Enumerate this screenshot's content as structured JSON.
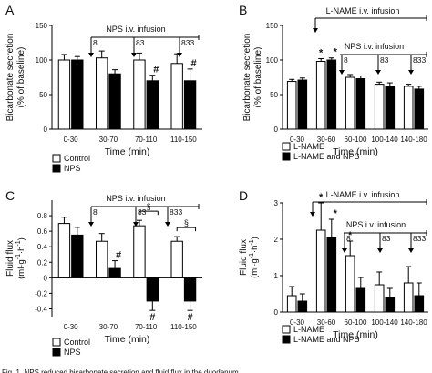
{
  "chart_data": [
    {
      "panel": "A",
      "type": "bar",
      "ylabel": "Bicarbonate secretion (% of baseline)",
      "xlabel": "Time (min)",
      "categories": [
        "0-30",
        "30-70",
        "70-110",
        "110-150"
      ],
      "ylim": [
        0,
        150
      ],
      "yticks": [
        0,
        50,
        100,
        150
      ],
      "series": [
        {
          "name": "Control",
          "values": [
            100,
            103,
            100,
            95
          ],
          "err": [
            8,
            10,
            10,
            14
          ],
          "color": "#ffffff"
        },
        {
          "name": "NPS",
          "values": [
            100,
            80,
            70,
            70
          ],
          "err": [
            5,
            6,
            8,
            17
          ],
          "color": "#000000"
        }
      ],
      "marks": [
        {
          "series": "NPS",
          "category": "70-110",
          "text": "#"
        },
        {
          "series": "NPS",
          "category": "110-150",
          "text": "#"
        }
      ],
      "infusion": {
        "label": "NPS i.v. infusion",
        "doses": [
          "8",
          "83",
          "833"
        ]
      },
      "legend": "bottom-left"
    },
    {
      "panel": "B",
      "type": "bar",
      "ylabel": "Bicarbonate secretion (% of baseline)",
      "xlabel": "Time (min)",
      "categories": [
        "0-30",
        "30-60",
        "60-100",
        "100-140",
        "140-180"
      ],
      "ylim": [
        0,
        150
      ],
      "yticks": [
        0,
        50,
        100,
        150
      ],
      "series": [
        {
          "name": "L-NAME",
          "values": [
            69,
            98,
            75,
            65,
            62
          ],
          "err": [
            3,
            4,
            4,
            3,
            3
          ],
          "color": "#ffffff"
        },
        {
          "name": "L-NAME and NPS",
          "values": [
            71,
            100,
            73,
            62,
            58
          ],
          "err": [
            3,
            3,
            4,
            5,
            4
          ],
          "color": "#000000"
        }
      ],
      "marks": [
        {
          "series": "L-NAME",
          "category": "30-60",
          "text": "*"
        },
        {
          "series": "L-NAME and NPS",
          "category": "30-60",
          "text": "*"
        }
      ],
      "infusion": {
        "label": "NPS i.v. infusion",
        "doses": [
          "8",
          "83",
          "833"
        ]
      },
      "top_infusion": {
        "label": "L-NAME i.v. infusion"
      },
      "legend": "bottom-left"
    },
    {
      "panel": "C",
      "type": "bar",
      "ylabel": "Fluid flux (ml·g-1·h-1)",
      "xlabel": "Time (min)",
      "categories": [
        "0-30",
        "30-70",
        "70-110",
        "110-150"
      ],
      "ylim": [
        -0.5,
        1.0
      ],
      "yticks": [
        -0.4,
        -0.2,
        0,
        0.2,
        0.4,
        0.6,
        0.8
      ],
      "ytick_labels": [
        "-0.4",
        "-0.2",
        "0",
        "0.2",
        "0.4",
        "0.6",
        "0.8"
      ],
      "series": [
        {
          "name": "Control",
          "values": [
            0.7,
            0.47,
            0.67,
            0.47
          ],
          "err": [
            0.08,
            0.1,
            0.07,
            0.06
          ],
          "color": "#ffffff"
        },
        {
          "name": "NPS",
          "values": [
            0.55,
            0.12,
            -0.3,
            -0.3
          ],
          "err": [
            0.1,
            0.1,
            0.12,
            0.12
          ],
          "color": "#000000"
        }
      ],
      "marks": [
        {
          "series": "NPS",
          "category": "30-70",
          "text": "#"
        },
        {
          "series": "NPS",
          "category": "70-110",
          "text": "#"
        },
        {
          "series": "NPS",
          "category": "110-150",
          "text": "#"
        },
        {
          "series": "pair",
          "category": "70-110",
          "text": "§"
        },
        {
          "series": "pair",
          "category": "110-150",
          "text": "§"
        }
      ],
      "infusion": {
        "label": "NPS i.v. infusion",
        "doses": [
          "8",
          "83",
          "833"
        ]
      },
      "legend": "bottom-left"
    },
    {
      "panel": "D",
      "type": "bar",
      "ylabel": "Fluid flux (ml·g-1·h-1)",
      "xlabel": "Time (min)",
      "categories": [
        "0-30",
        "30-60",
        "60-100",
        "100-140",
        "140-180"
      ],
      "ylim": [
        0,
        3
      ],
      "yticks": [
        0,
        1,
        2,
        3
      ],
      "series": [
        {
          "name": "L-NAME",
          "values": [
            0.45,
            2.25,
            1.55,
            0.75,
            0.8
          ],
          "err": [
            0.25,
            0.75,
            0.4,
            0.35,
            0.45
          ],
          "color": "#ffffff"
        },
        {
          "name": "L-NAME and NPS",
          "values": [
            0.3,
            2.05,
            0.65,
            0.4,
            0.45
          ],
          "err": [
            0.2,
            0.5,
            0.3,
            0.25,
            0.35
          ],
          "color": "#000000"
        }
      ],
      "marks": [
        {
          "series": "L-NAME",
          "category": "30-60",
          "text": "*"
        },
        {
          "series": "L-NAME and NPS",
          "category": "30-60",
          "text": "*"
        },
        {
          "series": "L-NAME",
          "category": "60-100",
          "text": "*"
        }
      ],
      "infusion": {
        "label": "NPS i.v. infusion",
        "doses": [
          "8",
          "83",
          "833"
        ]
      },
      "top_infusion": {
        "label": "L-NAME i.v. infusion"
      },
      "legend": "bottom-left"
    }
  ],
  "panel_letters": [
    "A",
    "B",
    "C",
    "D"
  ],
  "caption": "Fig. 1. NPS reduced bicarbonate secretion and fluid flux in the duodenum."
}
